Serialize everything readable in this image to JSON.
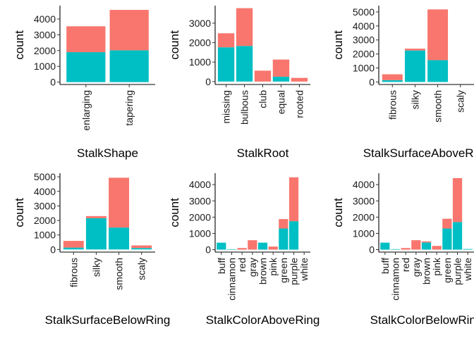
{
  "colors": {
    "series_a": "#f8766d",
    "series_b": "#00bfc4"
  },
  "chart_data": [
    {
      "type": "bar",
      "stacked": true,
      "xlabel": "StalkShape",
      "ylabel": "count",
      "categories": [
        "enlarging",
        "tapering"
      ],
      "yticks": [
        0,
        1000,
        2000,
        3000,
        4000
      ],
      "ylim": [
        -150,
        4850
      ],
      "series": [
        {
          "values": [
            1900,
            2020
          ]
        },
        {
          "values": [
            1640,
            2560
          ]
        }
      ]
    },
    {
      "type": "bar",
      "stacked": true,
      "xlabel": "StalkRoot",
      "ylabel": "count",
      "categories": [
        "missing",
        "bulbous",
        "club",
        "equal",
        "rooted"
      ],
      "yticks": [
        0,
        1000,
        2000,
        3000
      ],
      "ylim": [
        -150,
        3900
      ],
      "series": [
        {
          "values": [
            1760,
            1830,
            0,
            250,
            0
          ]
        },
        {
          "values": [
            720,
            1940,
            560,
            880,
            190
          ]
        }
      ]
    },
    {
      "type": "bar",
      "stacked": true,
      "xlabel": "StalkSurfaceAboveRing",
      "ylabel": "count",
      "categories": [
        "fibrous",
        "silky",
        "smooth",
        "scaly"
      ],
      "yticks": [
        0,
        1000,
        2000,
        3000,
        4000,
        5000
      ],
      "ylim": [
        -180,
        5450
      ],
      "series": [
        {
          "values": [
            130,
            2250,
            1560,
            0
          ]
        },
        {
          "values": [
            420,
            130,
            3620,
            0
          ]
        }
      ]
    },
    {
      "type": "bar",
      "stacked": true,
      "xlabel": "StalkSurfaceBelowRing",
      "ylabel": "count",
      "categories": [
        "fibrous",
        "silky",
        "smooth",
        "scaly"
      ],
      "yticks": [
        0,
        1000,
        2000,
        3000,
        4000,
        5000
      ],
      "ylim": [
        -180,
        5250
      ],
      "series": [
        {
          "values": [
            130,
            2150,
            1510,
            100
          ]
        },
        {
          "values": [
            460,
            150,
            3430,
            180
          ]
        }
      ]
    },
    {
      "type": "bar",
      "stacked": true,
      "xlabel": "StalkColorAboveRing",
      "ylabel": "count",
      "categories": [
        "buff",
        "cinnamon",
        "red",
        "gray",
        "brown",
        "pink",
        "green",
        "purple",
        "white"
      ],
      "yticks": [
        0,
        1000,
        2000,
        3000,
        4000
      ],
      "ylim": [
        -150,
        4700
      ],
      "series": [
        {
          "values": [
            430,
            30,
            0,
            0,
            430,
            0,
            1300,
            1750,
            0
          ]
        },
        {
          "values": [
            0,
            0,
            100,
            580,
            0,
            190,
            580,
            2700,
            0
          ]
        }
      ]
    },
    {
      "type": "bar",
      "stacked": true,
      "xlabel": "StalkColorBelowRing",
      "ylabel": "count",
      "categories": [
        "buff",
        "cinnamon",
        "red",
        "gray",
        "brown",
        "pink",
        "green",
        "purple",
        "white"
      ],
      "yticks": [
        0,
        1000,
        2000,
        3000,
        4000
      ],
      "ylim": [
        -150,
        4700
      ],
      "series": [
        {
          "values": [
            430,
            30,
            0,
            0,
            440,
            0,
            1300,
            1700,
            40
          ]
        },
        {
          "values": [
            0,
            0,
            100,
            580,
            70,
            230,
            600,
            2700,
            0
          ]
        }
      ]
    }
  ]
}
